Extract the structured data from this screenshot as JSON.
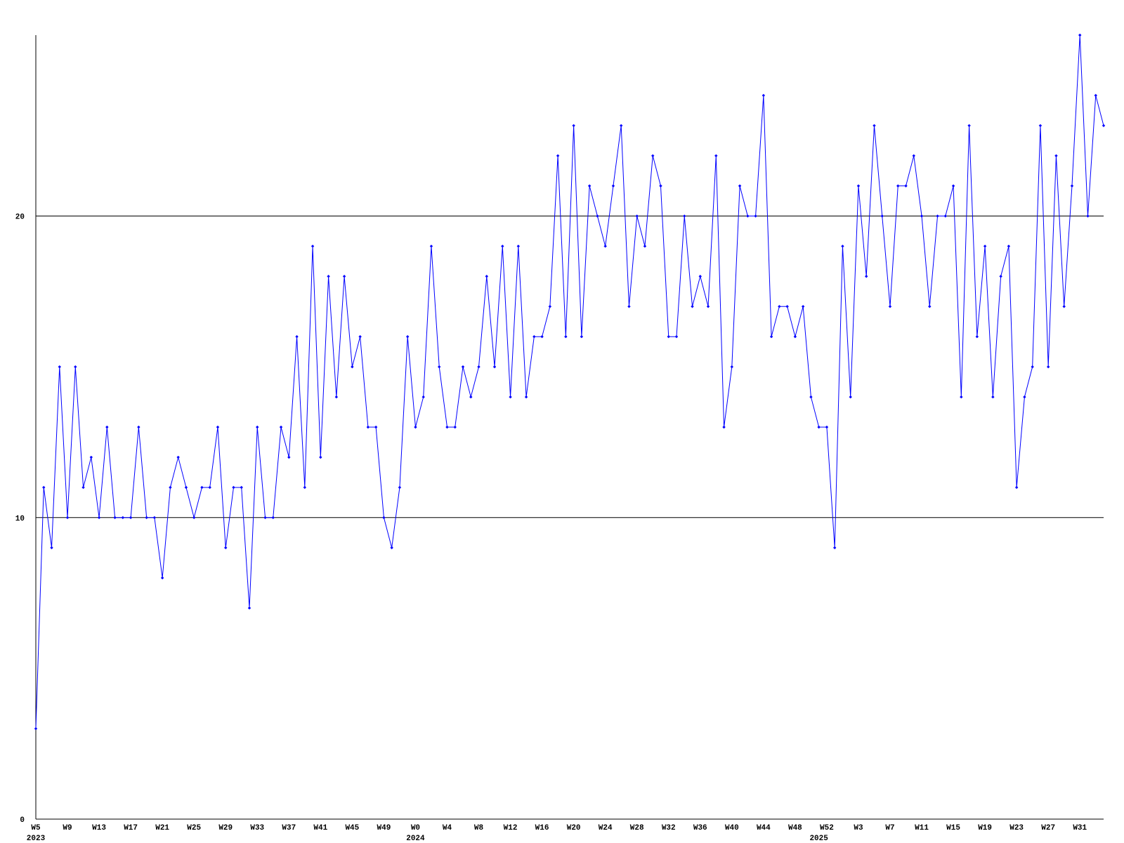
{
  "chart_data": {
    "type": "line",
    "categories": [
      "W5",
      null,
      null,
      null,
      "W9",
      null,
      null,
      null,
      "W13",
      null,
      null,
      null,
      "W17",
      null,
      null,
      null,
      "W21",
      null,
      null,
      null,
      "W25",
      null,
      null,
      null,
      "W29",
      null,
      null,
      null,
      "W33",
      null,
      null,
      null,
      "W37",
      null,
      null,
      null,
      "W41",
      null,
      null,
      null,
      "W45",
      null,
      null,
      null,
      "W49",
      null,
      null,
      null,
      "W0",
      null,
      null,
      null,
      "W4",
      null,
      null,
      null,
      "W8",
      null,
      null,
      null,
      "W12",
      null,
      null,
      null,
      "W16",
      null,
      null,
      null,
      "W20",
      null,
      null,
      null,
      "W24",
      null,
      null,
      null,
      "W28",
      null,
      null,
      null,
      "W32",
      null,
      null,
      null,
      "W36",
      null,
      null,
      null,
      "W40",
      null,
      null,
      null,
      "W44",
      null,
      null,
      null,
      "W48",
      null,
      null,
      null,
      "W52",
      null,
      null,
      null,
      "W3",
      null,
      null,
      null,
      "W7",
      null,
      null,
      null,
      "W11",
      null,
      null,
      null,
      "W15",
      null,
      null,
      null,
      "W19",
      null,
      null,
      null,
      "W23",
      null,
      null,
      null,
      "W27",
      null,
      null,
      null,
      "W31",
      null,
      null,
      null
    ],
    "years": [
      "2023",
      null,
      null,
      null,
      null,
      null,
      null,
      null,
      null,
      null,
      null,
      null,
      null,
      null,
      null,
      null,
      null,
      null,
      null,
      null,
      null,
      null,
      null,
      null,
      null,
      null,
      null,
      null,
      null,
      null,
      null,
      null,
      null,
      null,
      null,
      null,
      null,
      null,
      null,
      null,
      null,
      null,
      null,
      null,
      null,
      null,
      null,
      null,
      "2024",
      null,
      null,
      null,
      null,
      null,
      null,
      null,
      null,
      null,
      null,
      null,
      null,
      null,
      null,
      null,
      null,
      null,
      null,
      null,
      null,
      null,
      null,
      null,
      null,
      null,
      null,
      null,
      null,
      null,
      null,
      null,
      null,
      null,
      null,
      null,
      null,
      null,
      null,
      null,
      null,
      null,
      null,
      null,
      null,
      null,
      null,
      null,
      null,
      null,
      null,
      "2025",
      null,
      null,
      null,
      null,
      null,
      null,
      null,
      null,
      null,
      null,
      null,
      null,
      null,
      null,
      null,
      null,
      null,
      null,
      null,
      null,
      null,
      null,
      null,
      null,
      null,
      null,
      null,
      null,
      null,
      null,
      null,
      null,
      null
    ],
    "values": [
      3,
      11,
      9,
      15,
      10,
      15,
      11,
      12,
      10,
      13,
      10,
      10,
      10,
      13,
      10,
      10,
      8,
      11,
      12,
      11,
      10,
      11,
      11,
      13,
      9,
      11,
      11,
      7,
      13,
      10,
      10,
      13,
      12,
      16,
      11,
      19,
      12,
      18,
      14,
      18,
      15,
      16,
      13,
      13,
      10,
      9,
      11,
      16,
      13,
      14,
      19,
      15,
      13,
      13,
      15,
      14,
      15,
      18,
      15,
      19,
      14,
      19,
      14,
      16,
      16,
      17,
      22,
      16,
      23,
      16,
      21,
      20,
      19,
      21,
      23,
      17,
      20,
      19,
      22,
      21,
      16,
      16,
      20,
      17,
      18,
      17,
      22,
      13,
      15,
      21,
      20,
      20,
      24,
      16,
      17,
      17,
      16,
      17,
      14,
      13,
      13,
      9,
      19,
      14,
      21,
      18,
      23,
      20,
      17,
      21,
      21,
      22,
      20,
      17,
      20,
      20,
      21,
      14,
      23,
      16,
      19,
      14,
      18,
      19,
      11,
      14,
      15,
      23,
      15,
      22,
      17,
      21,
      26,
      20,
      24,
      23
    ],
    "color": "#0000ff",
    "ylim": [
      0,
      26
    ],
    "yticks": [
      0,
      10,
      20
    ],
    "grid": true
  }
}
